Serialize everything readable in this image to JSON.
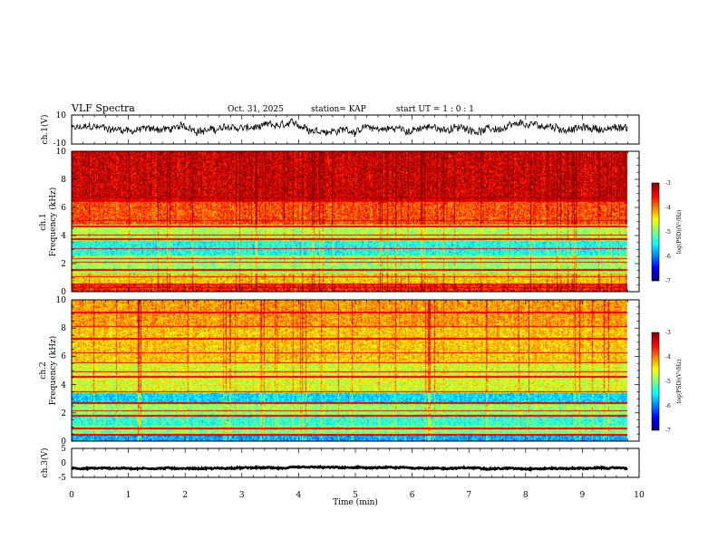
{
  "header": {
    "title": "VLF Spectra",
    "date": "Oct. 31, 2025",
    "station": "station= KAP",
    "start_ut": "start UT =  1 : 0  : 1"
  },
  "chart_data": [
    {
      "type": "line",
      "name": "ch1-waveform",
      "ylabel": "ch.1(V)",
      "ylim": [
        -10,
        10
      ],
      "yticks": [
        "10",
        "-10"
      ],
      "x_range_min": [
        0,
        9.8
      ],
      "mean_v": 0.5,
      "noise_amplitude_v": 4
    },
    {
      "type": "heatmap",
      "name": "ch1-spectrogram",
      "ylabel_line1": "ch.1",
      "ylabel_line2": "Frequency (kHz)",
      "ylim": [
        0,
        10
      ],
      "yticks": [
        "10",
        "8",
        "6",
        "4",
        "2",
        "0"
      ],
      "x_range_min": [
        0,
        9.8
      ],
      "bands": [
        {
          "from_khz": 0.0,
          "to_khz": 0.6,
          "log_psd": -3.6
        },
        {
          "from_khz": 0.6,
          "to_khz": 1.3,
          "log_psd": -4.3
        },
        {
          "from_khz": 1.3,
          "to_khz": 2.6,
          "log_psd": -4.9
        },
        {
          "from_khz": 2.6,
          "to_khz": 3.6,
          "log_psd": -5.4
        },
        {
          "from_khz": 3.6,
          "to_khz": 4.8,
          "log_psd": -4.8
        },
        {
          "from_khz": 4.8,
          "to_khz": 6.5,
          "log_psd": -3.8
        },
        {
          "from_khz": 6.5,
          "to_khz": 10.0,
          "log_psd": -3.3
        }
      ],
      "lines_khz": [
        0.3,
        0.55,
        1.05,
        1.55,
        2.1,
        2.35,
        3.05,
        3.75,
        4.05,
        4.65,
        5.05,
        6.45,
        6.7
      ],
      "colorbar": {
        "label": "log(PSD)(V²/Hz)",
        "ticks": [
          "-3",
          "-4",
          "-5",
          "-6",
          "-7"
        ],
        "range": [
          -7,
          -3
        ]
      }
    },
    {
      "type": "heatmap",
      "name": "ch2-spectrogram",
      "ylabel_line1": "ch.2",
      "ylabel_line2": "Frequency (kHz)",
      "ylim": [
        0,
        10
      ],
      "yticks": [
        "10",
        "8",
        "6",
        "4",
        "2",
        "0"
      ],
      "x_range_min": [
        0,
        9.8
      ],
      "bands": [
        {
          "from_khz": 0.0,
          "to_khz": 0.5,
          "log_psd": -5.8
        },
        {
          "from_khz": 0.5,
          "to_khz": 1.1,
          "log_psd": -5.0
        },
        {
          "from_khz": 1.1,
          "to_khz": 1.8,
          "log_psd": -5.3
        },
        {
          "from_khz": 1.8,
          "to_khz": 2.7,
          "log_psd": -4.9
        },
        {
          "from_khz": 2.7,
          "to_khz": 3.4,
          "log_psd": -5.6
        },
        {
          "from_khz": 3.4,
          "to_khz": 5.5,
          "log_psd": -4.6
        },
        {
          "from_khz": 5.5,
          "to_khz": 8.0,
          "log_psd": -4.3
        },
        {
          "from_khz": 8.0,
          "to_khz": 10.0,
          "log_psd": -4.1
        }
      ],
      "lines_khz": [
        0.45,
        0.9,
        1.8,
        2.15,
        2.7,
        3.5,
        4.55,
        4.9,
        5.55,
        6.25,
        7.25,
        8.1,
        9.1
      ],
      "colorbar": {
        "label": "log(PSD)(V²/Hz)",
        "ticks": [
          "-3",
          "-4",
          "-5",
          "-6",
          "-7"
        ],
        "range": [
          -7,
          -3
        ]
      }
    },
    {
      "type": "line",
      "name": "ch3-waveform",
      "ylabel": "ch.3(V)",
      "ylim": [
        -5,
        5
      ],
      "yticks": [
        "5",
        "0",
        "-5"
      ],
      "x_range_min": [
        0,
        9.8
      ],
      "mean_v": -1.8,
      "noise_amplitude_v": 0.35
    },
    {
      "type": "axis",
      "name": "time-axis",
      "xlabel": "Time (min)",
      "xlim": [
        0,
        10
      ],
      "xticks": [
        "0",
        "1",
        "2",
        "3",
        "4",
        "5",
        "6",
        "7",
        "8",
        "9",
        "10"
      ]
    }
  ]
}
